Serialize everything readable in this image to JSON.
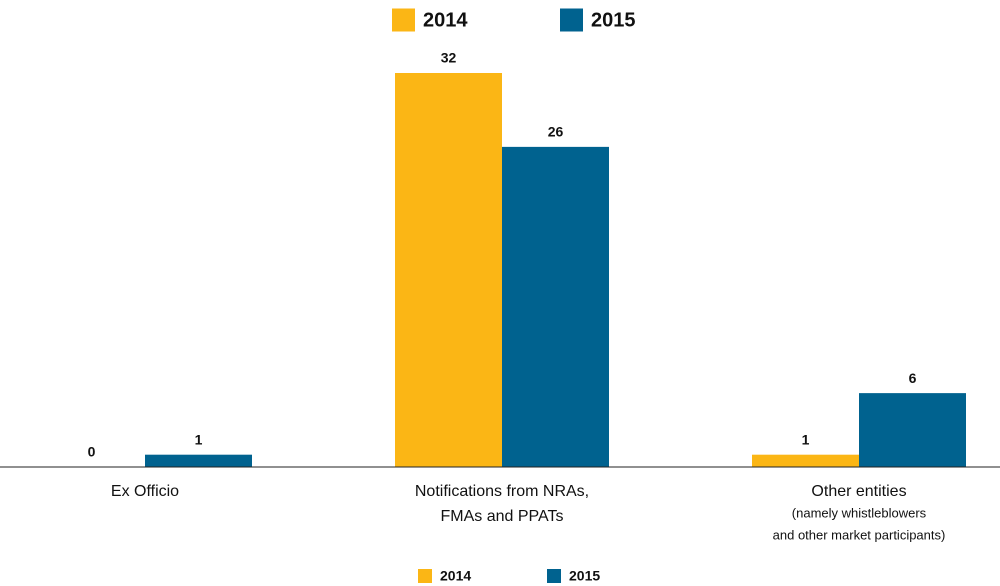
{
  "chart_data": {
    "type": "bar",
    "categories": [
      [
        "Ex Officio"
      ],
      [
        "Notifications from NRAs,",
        "FMAs and PPATs"
      ],
      [
        "Other entities",
        "(namely whistleblowers",
        "and other market participants)"
      ]
    ],
    "series": [
      {
        "name": "2014",
        "color": "#fbb615",
        "values": [
          0,
          32,
          1
        ]
      },
      {
        "name": "2015",
        "color": "#00628f",
        "values": [
          1,
          26,
          6
        ]
      }
    ]
  }
}
